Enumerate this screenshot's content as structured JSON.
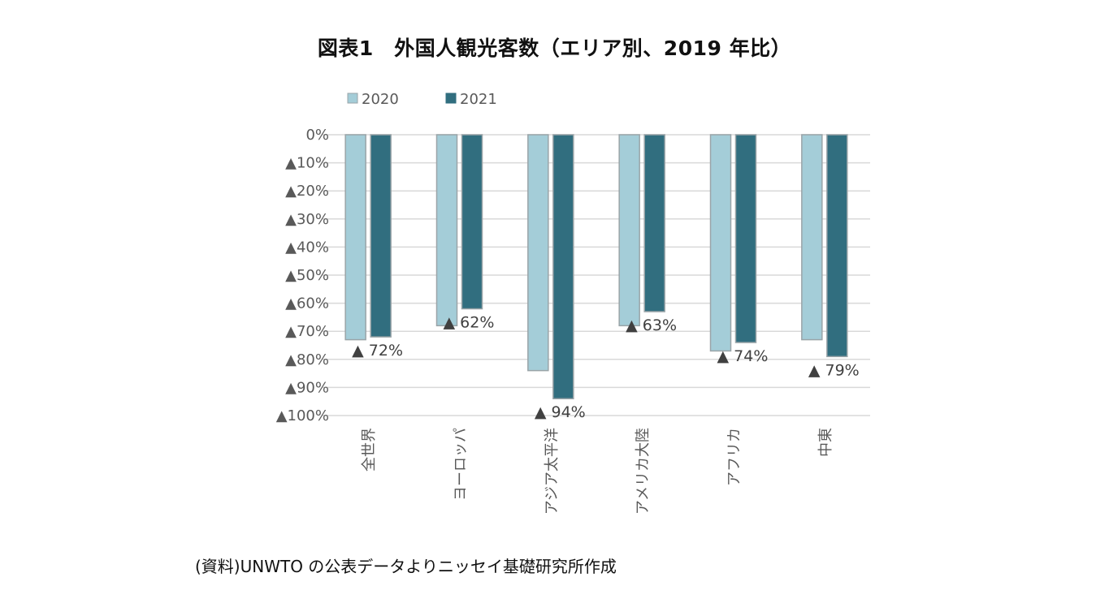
{
  "title": "図表1　外国人観光客数（エリア別、2019 年比）",
  "source": "(資料)UNWTO の公表データよりニッセイ基礎研究所作成",
  "colors": {
    "s2020": "#a4cdd8",
    "s2020_edge": "#9aa4a8",
    "s2021": "#316e7f",
    "grid": "#d9d9d9",
    "text": "#595959"
  },
  "chart_data": {
    "type": "bar",
    "categories": [
      "全世界",
      "ヨーロッパ",
      "アジア太平洋",
      "アメリカ大陸",
      "アフリカ",
      "中東"
    ],
    "series": [
      {
        "name": "2020",
        "values": [
          -73,
          -68,
          -84,
          -68,
          -77,
          -73
        ]
      },
      {
        "name": "2021",
        "values": [
          -72,
          -62,
          -94,
          -63,
          -74,
          -79
        ]
      }
    ],
    "y_ticks": [
      {
        "value": 0,
        "label": "0%"
      },
      {
        "value": -10,
        "label": "▲10%"
      },
      {
        "value": -20,
        "label": "▲20%"
      },
      {
        "value": -30,
        "label": "▲30%"
      },
      {
        "value": -40,
        "label": "▲40%"
      },
      {
        "value": -50,
        "label": "▲50%"
      },
      {
        "value": -60,
        "label": "▲60%"
      },
      {
        "value": -70,
        "label": "▲70%"
      },
      {
        "value": -80,
        "label": "▲80%"
      },
      {
        "value": -90,
        "label": "▲90%"
      },
      {
        "value": -100,
        "label": "▲100%"
      }
    ],
    "data_labels_2021": [
      "▲ 72%",
      "▲ 62%",
      "▲ 94%",
      "▲ 63%",
      "▲ 74%",
      "▲ 79%"
    ],
    "ylim": [
      -100,
      0
    ],
    "grid": true,
    "legend_position": "top-left"
  }
}
